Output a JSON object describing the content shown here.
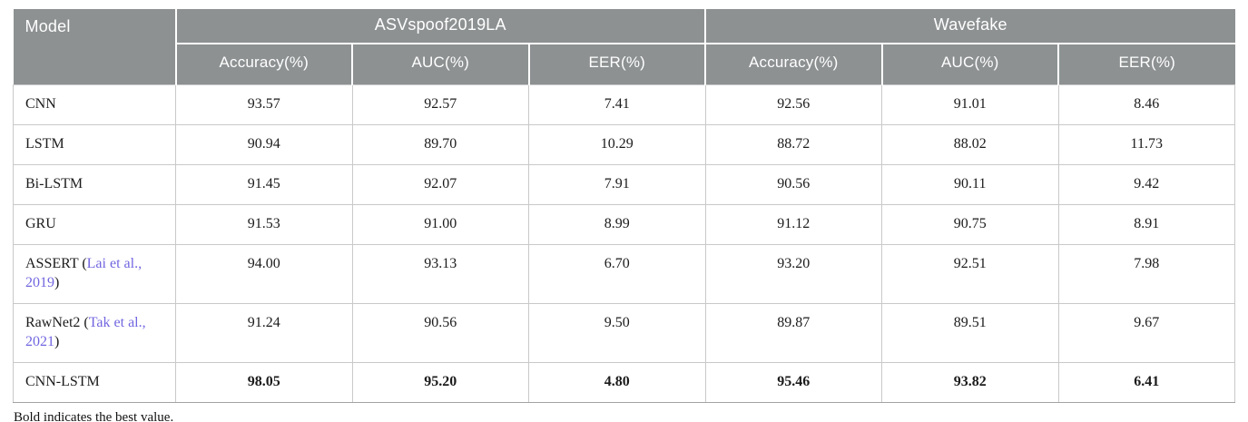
{
  "table": {
    "model_column_header": "Model",
    "groups": [
      {
        "label": "ASVspoof2019LA"
      },
      {
        "label": "Wavefake"
      }
    ],
    "subheaders": [
      "Accuracy(%)",
      "AUC(%)",
      "EER(%)",
      "Accuracy(%)",
      "AUC(%)",
      "EER(%)"
    ],
    "rows": [
      {
        "model_prefix": "CNN",
        "citation": "",
        "model_suffix": "",
        "bold": false,
        "values": [
          "93.57",
          "92.57",
          "7.41",
          "92.56",
          "91.01",
          "8.46"
        ]
      },
      {
        "model_prefix": "LSTM",
        "citation": "",
        "model_suffix": "",
        "bold": false,
        "values": [
          "90.94",
          "89.70",
          "10.29",
          "88.72",
          "88.02",
          "11.73"
        ]
      },
      {
        "model_prefix": "Bi-LSTM",
        "citation": "",
        "model_suffix": "",
        "bold": false,
        "values": [
          "91.45",
          "92.07",
          "7.91",
          "90.56",
          "90.11",
          "9.42"
        ]
      },
      {
        "model_prefix": "GRU",
        "citation": "",
        "model_suffix": "",
        "bold": false,
        "values": [
          "91.53",
          "91.00",
          "8.99",
          "91.12",
          "90.75",
          "8.91"
        ]
      },
      {
        "model_prefix": "ASSERT (",
        "citation": "Lai et al., 2019",
        "model_suffix": ")",
        "bold": false,
        "values": [
          "94.00",
          "93.13",
          "6.70",
          "93.20",
          "92.51",
          "7.98"
        ]
      },
      {
        "model_prefix": "RawNet2 (",
        "citation": "Tak et al., 2021",
        "model_suffix": ")",
        "bold": false,
        "values": [
          "91.24",
          "90.56",
          "9.50",
          "89.87",
          "89.51",
          "9.67"
        ]
      },
      {
        "model_prefix": "CNN-LSTM",
        "citation": "",
        "model_suffix": "",
        "bold": true,
        "values": [
          "98.05",
          "95.20",
          "4.80",
          "95.46",
          "93.82",
          "6.41"
        ]
      }
    ],
    "footnote": "Bold indicates the best value."
  },
  "colors": {
    "header_bg": "#8d9192",
    "header_text": "#ffffff",
    "body_text": "#1b1b1b",
    "citation_link": "#7166e0",
    "cell_border": "#c9c9c9"
  }
}
